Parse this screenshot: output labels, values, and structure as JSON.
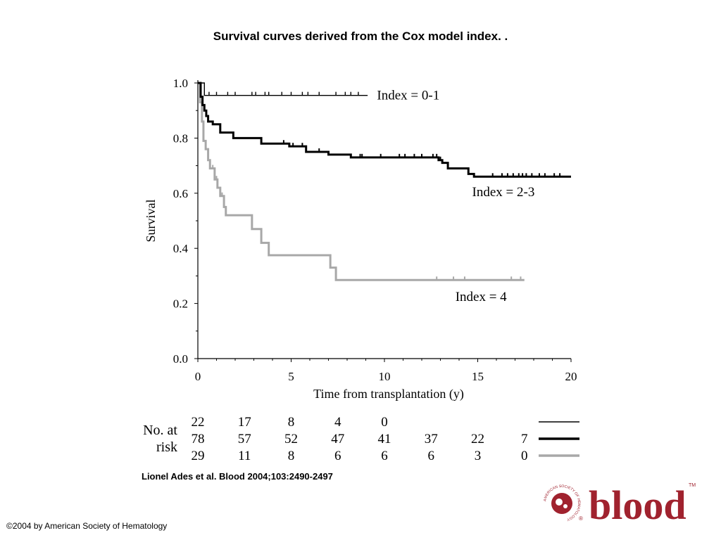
{
  "slide": {
    "title": "Survival curves derived from the Cox model index. .",
    "citation": "Lionel Ades et al. Blood 2004;103:2490-2497",
    "copyright": "©2004 by American Society of Hematology",
    "logo_text": "blood",
    "logo_ring_text": "AMERICAN SOCIETY OF HEMATOLOGY",
    "logo_tm": "TM",
    "logo_reg": "®",
    "brand_color": "#a0222e"
  },
  "chart_data": {
    "type": "line",
    "step": true,
    "xlabel": "Time from transplantation (y)",
    "ylabel": "Survival",
    "xlim": [
      0,
      20
    ],
    "ylim": [
      0,
      1
    ],
    "xticks": [
      0,
      5,
      10,
      15,
      20
    ],
    "yticks": [
      "0.0",
      "0.2",
      "0.4",
      "0.6",
      "0.8",
      "1.0"
    ],
    "grid": false,
    "series": [
      {
        "name": "Index = 0-1",
        "color": "#000000",
        "style": "thin",
        "steps": [
          [
            0,
            1.0
          ],
          [
            0.35,
            0.955
          ],
          [
            9.1,
            0.955
          ]
        ],
        "censors": [
          0.6,
          1.0,
          1.6,
          2.0,
          2.9,
          3.1,
          3.6,
          3.8,
          4.5,
          5.0,
          5.6,
          5.9,
          6.5,
          7.4,
          7.9,
          8.2,
          8.6
        ]
      },
      {
        "name": "Index = 2-3",
        "color": "#000000",
        "style": "thick",
        "steps": [
          [
            0,
            1.0
          ],
          [
            0.15,
            0.95
          ],
          [
            0.25,
            0.92
          ],
          [
            0.35,
            0.9
          ],
          [
            0.45,
            0.88
          ],
          [
            0.55,
            0.86
          ],
          [
            0.8,
            0.85
          ],
          [
            1.2,
            0.82
          ],
          [
            1.9,
            0.8
          ],
          [
            3.4,
            0.78
          ],
          [
            4.9,
            0.77
          ],
          [
            5.8,
            0.75
          ],
          [
            7.0,
            0.74
          ],
          [
            8.2,
            0.73
          ],
          [
            12.9,
            0.72
          ],
          [
            13.1,
            0.71
          ],
          [
            13.4,
            0.69
          ],
          [
            14.5,
            0.67
          ],
          [
            14.8,
            0.66
          ],
          [
            20,
            0.66
          ]
        ],
        "censors": [
          4.6,
          5.1,
          5.6,
          6.5,
          8.7,
          8.8,
          9.8,
          10.8,
          11.1,
          11.6,
          12.0,
          12.6,
          12.8,
          13.0,
          15.8,
          16.3,
          16.6,
          16.9,
          17.2,
          17.4,
          17.6,
          17.9,
          18.3,
          18.6,
          19.1,
          19.4
        ]
      },
      {
        "name": "Index = 4",
        "color": "#a8a8a8",
        "style": "thick",
        "steps": [
          [
            0,
            1.0
          ],
          [
            0.12,
            0.93
          ],
          [
            0.22,
            0.86
          ],
          [
            0.3,
            0.79
          ],
          [
            0.42,
            0.76
          ],
          [
            0.55,
            0.72
          ],
          [
            0.65,
            0.69
          ],
          [
            0.9,
            0.65
          ],
          [
            1.05,
            0.62
          ],
          [
            1.2,
            0.59
          ],
          [
            1.4,
            0.55
          ],
          [
            1.5,
            0.52
          ],
          [
            2.9,
            0.47
          ],
          [
            3.4,
            0.42
          ],
          [
            3.8,
            0.375
          ],
          [
            7.1,
            0.33
          ],
          [
            7.4,
            0.285
          ],
          [
            17.5,
            0.285
          ]
        ],
        "censors": [
          0.8,
          1.0,
          1.3,
          1.4,
          12.8,
          13.7,
          14.3,
          16.8,
          17.3
        ]
      }
    ],
    "annotations": [
      {
        "text": "Index = 0-1",
        "x": 9.6,
        "y": 0.955
      },
      {
        "text": "Index = 2-3",
        "x": 14.7,
        "y": 0.605
      },
      {
        "text": "Index = 4",
        "x": 13.8,
        "y": 0.225
      }
    ],
    "risk_table": {
      "label_line1": "No. at",
      "label_line2": "risk",
      "times": [
        0,
        2.5,
        5,
        7.5,
        10,
        12.5,
        15,
        17.5
      ],
      "rows": [
        {
          "style": "thin",
          "color": "#000000",
          "values": [
            "22",
            "17",
            "8",
            "4",
            "0"
          ]
        },
        {
          "style": "thick",
          "color": "#000000",
          "values": [
            "78",
            "57",
            "52",
            "47",
            "41",
            "37",
            "22",
            "7"
          ]
        },
        {
          "style": "thick",
          "color": "#a8a8a8",
          "values": [
            "29",
            "11",
            "8",
            "6",
            "6",
            "6",
            "3",
            "0"
          ]
        }
      ]
    }
  }
}
